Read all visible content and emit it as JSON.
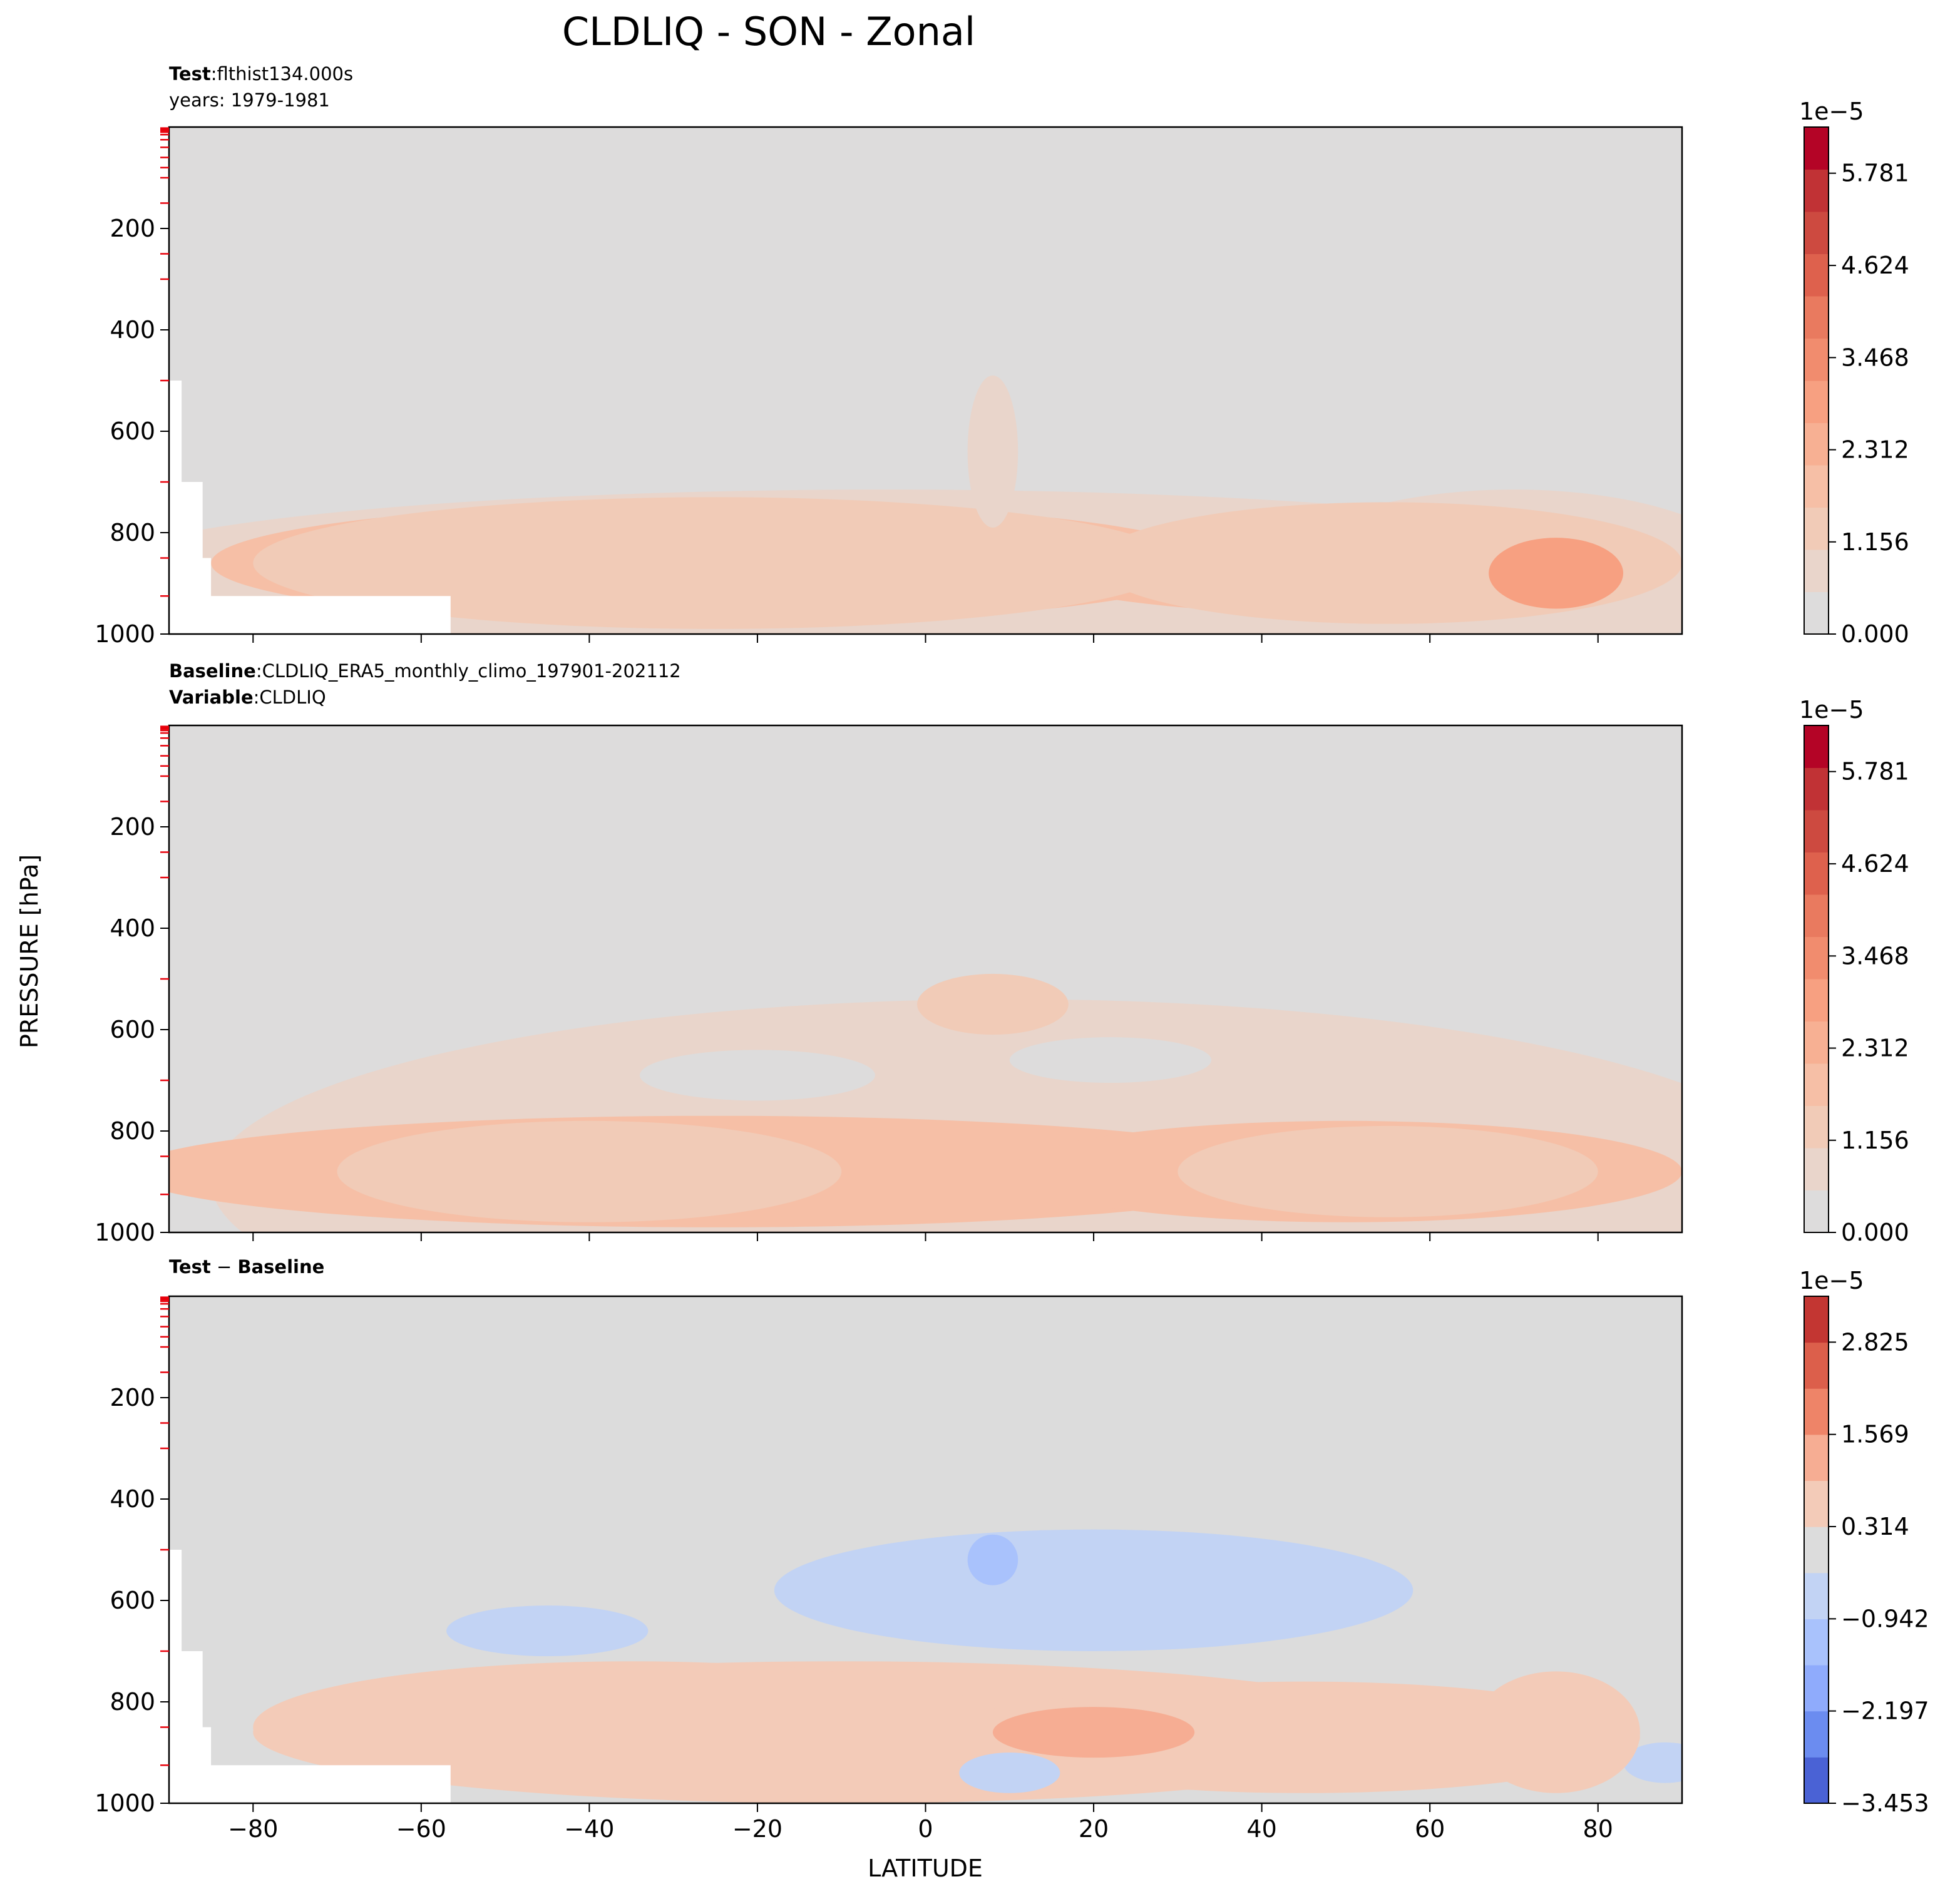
{
  "figure": {
    "title": "CLDLIQ - SON - Zonal",
    "ylabel": "PRESSURE [hPa]",
    "xlabel": "LATITUDE"
  },
  "chart_data": [
    {
      "type": "heatmap",
      "panel": "test",
      "header_key_1": "Test",
      "header_sep_1": ":",
      "header_val_1": "flthist134.000s",
      "header_line_2": "years: 1979-1981",
      "x_range": [
        -90,
        90
      ],
      "y_range": [
        1000,
        0
      ],
      "y_inverted": true,
      "x_ticks": [
        -80,
        -60,
        -40,
        -20,
        0,
        20,
        40,
        60,
        80
      ],
      "y_ticks": [
        200,
        400,
        600,
        800,
        1000
      ],
      "y_tick_labels": [
        "200",
        "400",
        "600",
        "800",
        "1000"
      ],
      "colorbar": {
        "multiplier": "1e−5",
        "range": [
          0,
          6.36
        ],
        "levels": 12,
        "tick_values": [
          0,
          1.156,
          2.312,
          3.468,
          4.624,
          5.781
        ],
        "tick_labels": [
          "0.000",
          "1.156",
          "2.312",
          "3.468",
          "4.624",
          "5.781"
        ],
        "colors": [
          "#dddcdc",
          "#e9d5cb",
          "#f1cbb7",
          "#f6bfa6",
          "#f7b093",
          "#f7a081",
          "#f18c6e",
          "#e97a5f",
          "#de614d",
          "#cd4a40",
          "#c13235",
          "#b40426"
        ]
      },
      "features": [
        {
          "lat": -40,
          "p": 855,
          "rx": 14,
          "ry": 28,
          "level": 11
        },
        {
          "lat": -35,
          "p": 850,
          "rx": 30,
          "ry": 70,
          "level": 8
        },
        {
          "lat": -28,
          "p": 855,
          "rx": 42,
          "ry": 100,
          "level": 5
        },
        {
          "lat": -25,
          "p": 860,
          "rx": 55,
          "ry": 130,
          "level": 2
        },
        {
          "lat": 55,
          "p": 860,
          "rx": 35,
          "ry": 120,
          "level": 2
        },
        {
          "lat": 75,
          "p": 880,
          "rx": 8,
          "ry": 70,
          "level": 5
        },
        {
          "lat": 8,
          "p": 640,
          "rx": 3,
          "ry": 150,
          "level": 1
        }
      ],
      "masked": true
    },
    {
      "type": "heatmap",
      "panel": "baseline",
      "header_key_1": "Baseline",
      "header_sep_1": ":",
      "header_val_1": "CLDLIQ_ERA5_monthly_climo_197901-202112",
      "header_key_2": "Variable",
      "header_sep_2": ":",
      "header_val_2": "CLDLIQ",
      "x_range": [
        -90,
        90
      ],
      "y_range": [
        1000,
        0
      ],
      "y_inverted": true,
      "x_ticks": [
        -80,
        -60,
        -40,
        -20,
        0,
        20,
        40,
        60,
        80
      ],
      "y_ticks": [
        200,
        400,
        600,
        800,
        1000
      ],
      "y_tick_labels": [
        "200",
        "400",
        "600",
        "800",
        "1000"
      ],
      "colorbar": {
        "multiplier": "1e−5",
        "range": [
          0,
          6.36
        ],
        "levels": 12,
        "tick_values": [
          0,
          1.156,
          2.312,
          3.468,
          4.624,
          5.781
        ],
        "tick_labels": [
          "0.000",
          "1.156",
          "2.312",
          "3.468",
          "4.624",
          "5.781"
        ],
        "colors": [
          "#dddcdc",
          "#e9d5cb",
          "#f1cbb7",
          "#f6bfa6",
          "#f7b093",
          "#f7a081",
          "#f18c6e",
          "#e97a5f",
          "#de614d",
          "#cd4a40",
          "#c13235",
          "#b40426"
        ]
      },
      "features": [
        {
          "lat": -50,
          "p": 890,
          "rx": 8,
          "ry": 40,
          "level": 5
        },
        {
          "lat": -45,
          "p": 880,
          "rx": 18,
          "ry": 70,
          "level": 4
        },
        {
          "lat": -40,
          "p": 880,
          "rx": 30,
          "ry": 100,
          "level": 2
        },
        {
          "lat": 8,
          "p": 545,
          "rx": 3,
          "ry": 30,
          "level": 4
        },
        {
          "lat": 8,
          "p": 550,
          "rx": 9,
          "ry": 60,
          "level": 2
        },
        {
          "lat": 58,
          "p": 880,
          "rx": 12,
          "ry": 50,
          "level": 4
        },
        {
          "lat": 55,
          "p": 880,
          "rx": 25,
          "ry": 90,
          "level": 2
        }
      ],
      "masked": false
    },
    {
      "type": "heatmap",
      "panel": "difference",
      "header_key_1": "Test",
      "header_sep_1": " − ",
      "header_val_1": "Baseline",
      "x_range": [
        -90,
        90
      ],
      "y_range": [
        1000,
        0
      ],
      "y_inverted": true,
      "x_ticks": [
        -80,
        -60,
        -40,
        -20,
        0,
        20,
        40,
        60,
        80
      ],
      "y_ticks": [
        200,
        400,
        600,
        800,
        1000
      ],
      "y_tick_labels": [
        "200",
        "400",
        "600",
        "800",
        "1000"
      ],
      "x_tick_labels": [
        "−80",
        "−60",
        "−40",
        "−20",
        "0",
        "20",
        "40",
        "60",
        "80"
      ],
      "colorbar": {
        "multiplier": "1e−5",
        "range": [
          -3.453,
          3.45
        ],
        "levels": 11,
        "tick_values": [
          -3.453,
          -2.197,
          -0.942,
          0.314,
          1.569,
          2.825
        ],
        "tick_labels": [
          "−3.453",
          "−2.197",
          "−0.942",
          "0.314",
          "1.569",
          "2.825"
        ],
        "colors": [
          "#4a62d5",
          "#6b8cf0",
          "#8fabfc",
          "#a9c2fc",
          "#c2d3f4",
          "#dcdcdc",
          "#f3cbb8",
          "#f6ad93",
          "#ee8468",
          "#dc5f4b",
          "#c33632"
        ]
      },
      "features": [
        {
          "lat": -28,
          "p": 855,
          "rx": 14,
          "ry": 20,
          "level": 10
        },
        {
          "lat": -30,
          "p": 855,
          "rx": 28,
          "ry": 55,
          "level": 9
        },
        {
          "lat": -30,
          "p": 850,
          "rx": 40,
          "ry": 90,
          "level": 8
        },
        {
          "lat": -35,
          "p": 850,
          "rx": 45,
          "ry": 130,
          "level": 6
        },
        {
          "lat": 20,
          "p": 860,
          "rx": 12,
          "ry": 50,
          "level": 7
        },
        {
          "lat": 75,
          "p": 850,
          "rx": 5,
          "ry": 45,
          "level": 7
        },
        {
          "lat": 75,
          "p": 860,
          "rx": 10,
          "ry": 120,
          "level": 6
        },
        {
          "lat": 20,
          "p": 580,
          "rx": 38,
          "ry": 120,
          "level": 4
        },
        {
          "lat": -45,
          "p": 660,
          "rx": 12,
          "ry": 50,
          "level": 4
        },
        {
          "lat": 8,
          "p": 520,
          "rx": 3,
          "ry": 50,
          "level": 3
        },
        {
          "lat": 10,
          "p": 940,
          "rx": 4,
          "ry": 25,
          "level": 4
        }
      ],
      "masked": true
    }
  ]
}
